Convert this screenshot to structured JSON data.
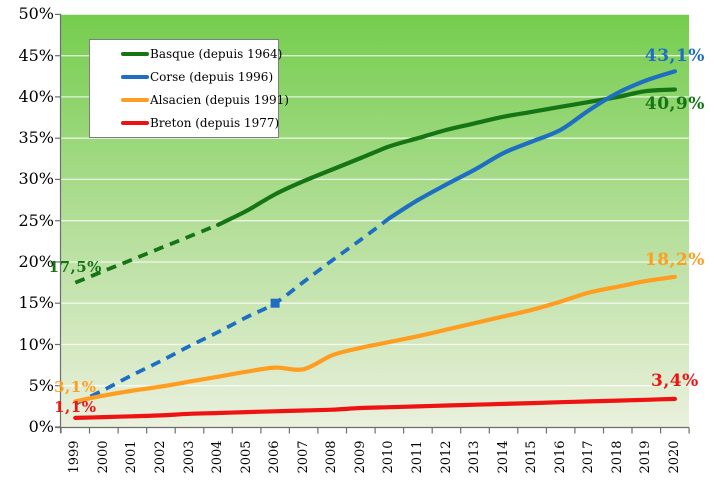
{
  "chart_data": {
    "type": "line",
    "title": "",
    "x": [
      1999,
      2000,
      2001,
      2002,
      2003,
      2004,
      2005,
      2006,
      2007,
      2008,
      2009,
      2010,
      2011,
      2012,
      2013,
      2014,
      2015,
      2016,
      2017,
      2018,
      2019,
      2020
    ],
    "y_axis": {
      "min": 0,
      "max": 50,
      "step": 5,
      "tick_labels": [
        "0%",
        "5%",
        "10%",
        "15%",
        "20%",
        "25%",
        "30%",
        "35%",
        "40%",
        "45%",
        "50%"
      ]
    },
    "grid": true,
    "legend_position": "top-left",
    "series": [
      {
        "name": "Basque (depuis 1964)",
        "color": "#157515",
        "dashed_through_index": 5,
        "values": [
          17.5,
          18.9,
          20.3,
          21.7,
          23.1,
          24.5,
          26.2,
          28.2,
          29.8,
          31.2,
          32.6,
          34.0,
          35.0,
          36.0,
          36.8,
          37.6,
          38.2,
          38.8,
          39.4,
          40.0,
          40.7,
          40.9
        ]
      },
      {
        "name": "Corse (depuis 1996)",
        "color": "#1E6FC2",
        "dashed_through_index": 11,
        "marker_index": 7,
        "values": [
          2.8,
          4.5,
          6.3,
          8.0,
          9.8,
          11.5,
          13.3,
          15.0,
          17.6,
          20.2,
          22.7,
          25.3,
          27.5,
          29.4,
          31.2,
          33.2,
          34.6,
          36.0,
          38.4,
          40.5,
          42.0,
          43.1
        ]
      },
      {
        "name": "Alsacien (depuis 1991)",
        "color": "#FF9D20",
        "values": [
          3.1,
          3.8,
          4.4,
          4.9,
          5.5,
          6.1,
          6.7,
          7.2,
          7.0,
          8.7,
          9.6,
          10.3,
          11.0,
          11.8,
          12.6,
          13.4,
          14.2,
          15.2,
          16.3,
          17.0,
          17.7,
          18.2
        ]
      },
      {
        "name": "Breton (depuis 1977)",
        "color": "#EE1212",
        "values": [
          1.1,
          1.2,
          1.3,
          1.4,
          1.6,
          1.7,
          1.8,
          1.9,
          2.0,
          2.1,
          2.3,
          2.4,
          2.5,
          2.6,
          2.7,
          2.8,
          2.9,
          3.0,
          3.1,
          3.2,
          3.3,
          3.4
        ]
      }
    ],
    "annotations": [
      {
        "text": "17,5%",
        "color": "#157515",
        "series": 0,
        "point": "first",
        "dy": -16
      },
      {
        "text": "40,9%",
        "color": "#157515",
        "series": 0,
        "point": "last",
        "dy": 14
      },
      {
        "text": "43,1%",
        "color": "#1E6FC2",
        "series": 1,
        "point": "last",
        "dy": -15
      },
      {
        "text": "3,1%",
        "color": "#FF9D20",
        "series": 2,
        "point": "first",
        "dy": -14
      },
      {
        "text": "18,2%",
        "color": "#FF9D20",
        "series": 2,
        "point": "last",
        "dy": -17
      },
      {
        "text": "1,1%",
        "color": "#EE1212",
        "series": 3,
        "point": "first",
        "dy": -11
      },
      {
        "text": "3,4%",
        "color": "#EE1212",
        "series": 3,
        "point": "last",
        "dy": -18
      }
    ]
  },
  "colors": {
    "plot_top": "#74CD4D",
    "plot_mid": "#B2DE97",
    "plot_bottom": "#EAF0DD",
    "grid": "#FFFFFF",
    "axis": "#6E6E6E"
  }
}
